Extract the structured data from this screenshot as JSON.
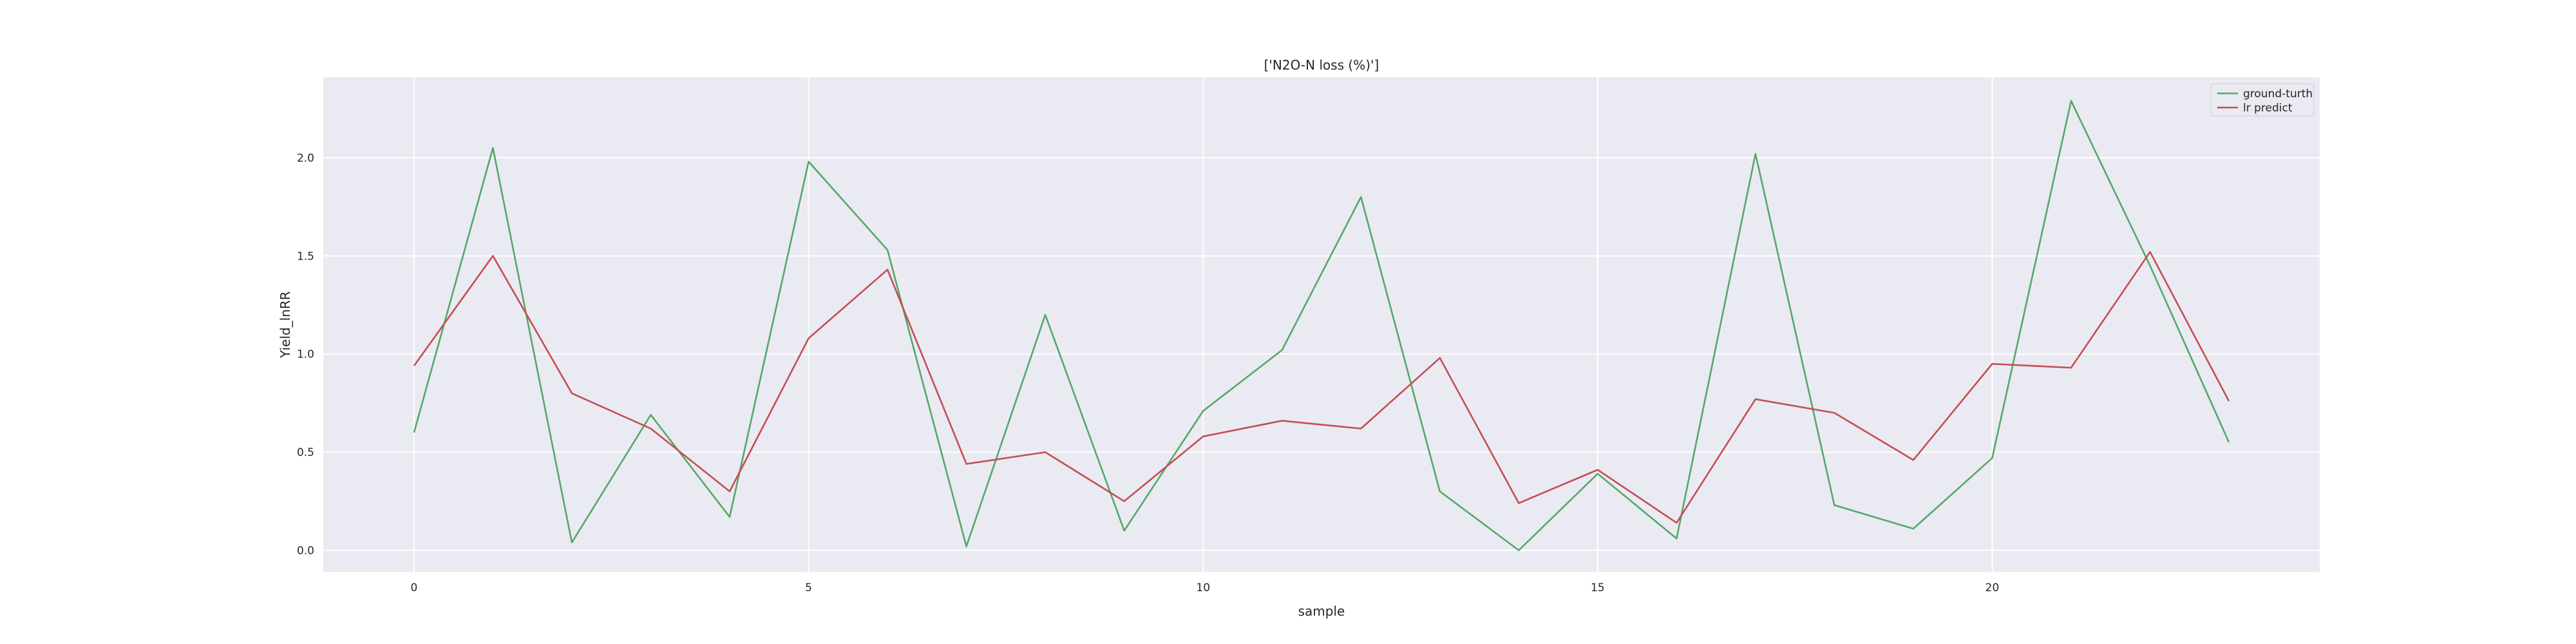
{
  "chart_data": {
    "type": "line",
    "title": "['N2O-N loss (%)']",
    "xlabel": "sample",
    "ylabel": "Yield_lnRR",
    "xlim": [
      -1.15,
      24.15
    ],
    "ylim": [
      -0.11,
      2.41
    ],
    "x": [
      0,
      1,
      2,
      3,
      4,
      5,
      6,
      7,
      8,
      9,
      10,
      11,
      12,
      13,
      14,
      15,
      16,
      17,
      18,
      19,
      20,
      21,
      22,
      23
    ],
    "x_ticks": [
      0,
      5,
      10,
      15,
      20
    ],
    "y_ticks": [
      0.0,
      0.5,
      1.0,
      1.5,
      2.0
    ],
    "x_tick_labels": [
      "0",
      "5",
      "10",
      "15",
      "20"
    ],
    "y_tick_labels": [
      "0.0",
      "0.5",
      "1.0",
      "1.5",
      "2.0"
    ],
    "grid": true,
    "legend_position": "top-right",
    "series": [
      {
        "name": "ground-turth",
        "color": "#55a868",
        "values": [
          0.6,
          2.05,
          0.04,
          0.69,
          0.17,
          1.98,
          1.53,
          0.02,
          1.2,
          0.1,
          0.71,
          1.02,
          1.8,
          0.3,
          0.0,
          0.39,
          0.06,
          2.02,
          0.23,
          0.11,
          0.47,
          2.29,
          1.45,
          0.55
        ]
      },
      {
        "name": "lr predict",
        "color": "#c44e52",
        "values": [
          0.94,
          1.5,
          0.8,
          0.62,
          0.3,
          1.08,
          1.43,
          0.44,
          0.5,
          0.25,
          0.58,
          0.66,
          0.62,
          0.98,
          0.24,
          0.41,
          0.14,
          0.77,
          0.7,
          0.46,
          0.95,
          0.93,
          1.52,
          0.76
        ]
      }
    ]
  },
  "colors": {
    "plot_background": "#eaeaf2",
    "grid": "#ffffff",
    "text": "#262626"
  }
}
